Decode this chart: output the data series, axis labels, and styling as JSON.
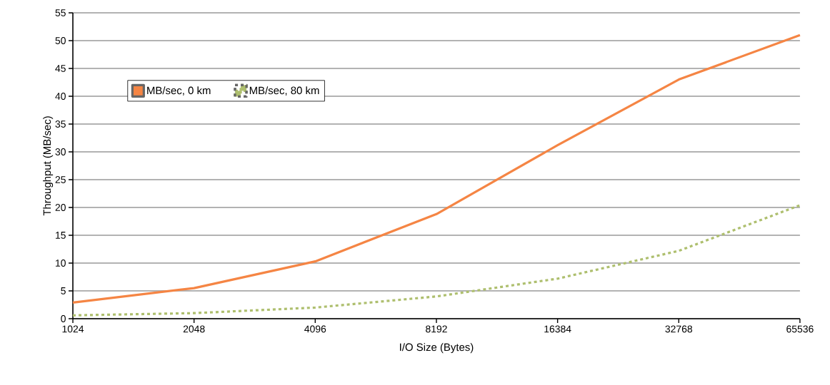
{
  "chart_data": {
    "type": "line",
    "xlabel": "I/O Size (Bytes)",
    "ylabel": "Throughput (MB/sec)",
    "categories": [
      "1024",
      "2048",
      "4096",
      "8192",
      "16384",
      "32768",
      "65536"
    ],
    "series": [
      {
        "name": "MB/sec, 0 km",
        "color": "#f58544",
        "line_style": "solid",
        "values": [
          2.9,
          5.5,
          10.3,
          18.8,
          31.2,
          43,
          51
        ]
      },
      {
        "name": "MB/sec, 80 km",
        "color": "#aebf6e",
        "line_style": "dotted",
        "values": [
          0.6,
          1.0,
          2.0,
          4.0,
          7.2,
          12.2,
          20.4
        ]
      }
    ],
    "ylim": [
      0,
      55
    ],
    "yticks": [
      0,
      5,
      10,
      15,
      20,
      25,
      30,
      35,
      40,
      45,
      50,
      55
    ],
    "grid": "y",
    "legend": "top left",
    "marker": "none"
  }
}
